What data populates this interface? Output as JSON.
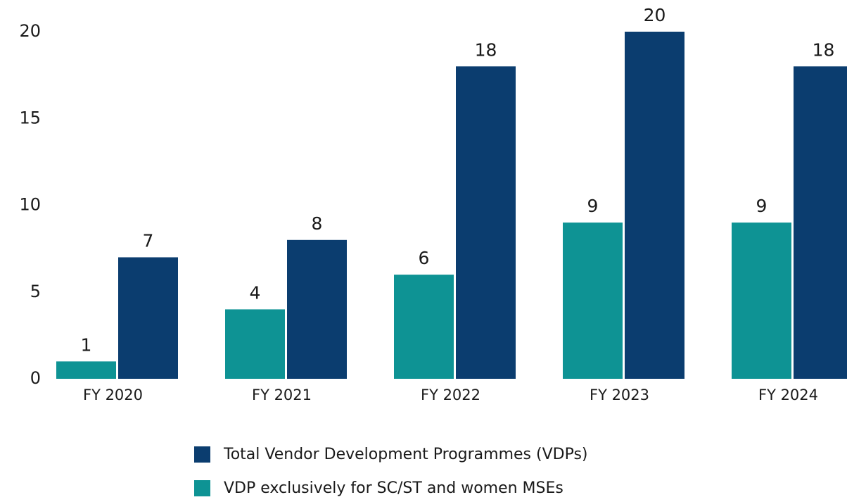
{
  "chart_data": {
    "type": "bar",
    "categories": [
      "FY 2020",
      "FY 2021",
      "FY 2022",
      "FY 2023",
      "FY 2024"
    ],
    "series": [
      {
        "name": "Total Vendor Development Programmes (VDPs)",
        "color": "#0b3d6f",
        "values": [
          7,
          8,
          18,
          20,
          18
        ]
      },
      {
        "name": "VDP exclusively for SC/ST and women MSEs",
        "color": "#0e9394",
        "values": [
          1,
          4,
          6,
          9,
          9
        ]
      }
    ],
    "ylim": [
      0,
      20
    ],
    "yticks": [
      0,
      5,
      10,
      15,
      20
    ],
    "grid": false
  }
}
